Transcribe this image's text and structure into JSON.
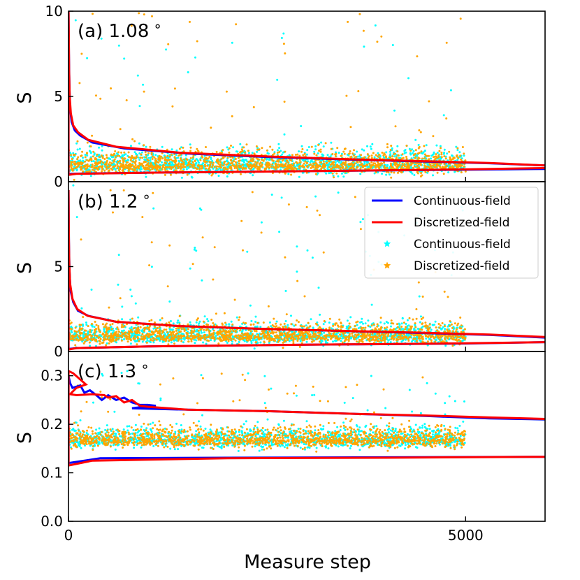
{
  "chart_data": {
    "type": "scatter",
    "xlabel": "Measure step",
    "x_ticks": [
      0,
      5000
    ],
    "xlim": [
      0,
      6000
    ],
    "legend": {
      "placement": "top-right of panel b",
      "entries": [
        {
          "label": "Continuous-field",
          "kind": "line",
          "color": "#0000ff"
        },
        {
          "label": "Discretized-field",
          "kind": "line",
          "color": "#ff0000"
        },
        {
          "label": "Continuous-field",
          "kind": "star",
          "color": "#00ffff"
        },
        {
          "label": "Discretized-field",
          "kind": "star",
          "color": "#ffa500"
        }
      ]
    },
    "panels": [
      {
        "label": "(a) 1.08",
        "degree_mark": "∘",
        "ylabel": "S",
        "ylim": [
          0,
          10
        ],
        "yticks": [
          0,
          5,
          10
        ],
        "scatter": {
          "steps": 5000,
          "base_mean": 1.0,
          "spread": 0.45,
          "outlier_max": 10
        },
        "series": [
          {
            "name": "Continuous-field",
            "color": "#0000ff",
            "upper": [
              [
                0,
                10
              ],
              [
                5,
                7.5
              ],
              [
                12,
                5.5
              ],
              [
                20,
                4.3
              ],
              [
                40,
                3.5
              ],
              [
                80,
                3.0
              ],
              [
                150,
                2.7
              ],
              [
                300,
                2.3
              ],
              [
                700,
                1.95
              ],
              [
                1500,
                1.65
              ],
              [
                2500,
                1.45
              ],
              [
                3500,
                1.3
              ],
              [
                4500,
                1.18
              ],
              [
                5300,
                1.08
              ],
              [
                6000,
                0.95
              ]
            ],
            "lower": [
              [
                0,
                0.45
              ],
              [
                100,
                0.47
              ],
              [
                1000,
                0.53
              ],
              [
                3000,
                0.62
              ],
              [
                5000,
                0.7
              ],
              [
                6000,
                0.75
              ]
            ]
          },
          {
            "name": "Discretized-field",
            "color": "#ff0000",
            "upper": [
              [
                0,
                10
              ],
              [
                4,
                8.5
              ],
              [
                8,
                6.5
              ],
              [
                15,
                5.0
              ],
              [
                30,
                4.0
              ],
              [
                60,
                3.3
              ],
              [
                120,
                2.9
              ],
              [
                250,
                2.45
              ],
              [
                600,
                2.05
              ],
              [
                1400,
                1.7
              ],
              [
                2500,
                1.48
              ],
              [
                3500,
                1.32
              ],
              [
                4500,
                1.2
              ],
              [
                5300,
                1.1
              ],
              [
                6000,
                0.95
              ]
            ],
            "lower": [
              [
                0,
                0.4
              ],
              [
                100,
                0.46
              ],
              [
                1000,
                0.53
              ],
              [
                3000,
                0.62
              ],
              [
                5000,
                0.72
              ],
              [
                6000,
                0.8
              ]
            ]
          }
        ]
      },
      {
        "label": "(b) 1.2",
        "degree_mark": "∘",
        "ylabel": "S",
        "ylim": [
          0,
          10
        ],
        "yticks": [
          0,
          5
        ],
        "scatter": {
          "steps": 5000,
          "base_mean": 0.95,
          "spread": 0.4,
          "outlier_max": 9.8
        },
        "series": [
          {
            "name": "Continuous-field",
            "color": "#0000ff",
            "upper": [
              [
                0,
                9.5
              ],
              [
                5,
                6.5
              ],
              [
                12,
                4.8
              ],
              [
                25,
                3.6
              ],
              [
                60,
                2.9
              ],
              [
                120,
                2.4
              ],
              [
                250,
                2.1
              ],
              [
                600,
                1.75
              ],
              [
                1400,
                1.5
              ],
              [
                2500,
                1.32
              ],
              [
                3500,
                1.2
              ],
              [
                4500,
                1.08
              ],
              [
                5300,
                0.98
              ],
              [
                6000,
                0.82
              ]
            ],
            "lower": [
              [
                0,
                0.15
              ],
              [
                100,
                0.2
              ],
              [
                1000,
                0.3
              ],
              [
                3000,
                0.4
              ],
              [
                5000,
                0.47
              ],
              [
                6000,
                0.55
              ]
            ]
          },
          {
            "name": "Discretized-field",
            "color": "#ff0000",
            "upper": [
              [
                0,
                9.5
              ],
              [
                4,
                7.0
              ],
              [
                10,
                5.2
              ],
              [
                20,
                4.0
              ],
              [
                50,
                3.1
              ],
              [
                110,
                2.5
              ],
              [
                240,
                2.1
              ],
              [
                600,
                1.75
              ],
              [
                1400,
                1.5
              ],
              [
                2500,
                1.33
              ],
              [
                3500,
                1.21
              ],
              [
                4500,
                1.1
              ],
              [
                5300,
                1.0
              ],
              [
                6000,
                0.85
              ]
            ],
            "lower": [
              [
                0,
                0.12
              ],
              [
                100,
                0.2
              ],
              [
                1000,
                0.3
              ],
              [
                3000,
                0.4
              ],
              [
                5000,
                0.48
              ],
              [
                6000,
                0.55
              ]
            ]
          }
        ]
      },
      {
        "label": "(c) 1.3",
        "degree_mark": "∘",
        "ylabel": "S",
        "ylim": [
          0.0,
          0.35
        ],
        "yticks": [
          0.0,
          0.1,
          0.2,
          0.3
        ],
        "ytick_labels": [
          "0.0",
          "0.1",
          "0.2",
          "0.3"
        ],
        "scatter": {
          "steps": 5000,
          "base_mean": 0.168,
          "spread": 0.013,
          "outlier_max": 0.31
        },
        "series": [
          {
            "name": "Continuous-field",
            "color": "#0000ff",
            "upper": [
              [
                0,
                0.3
              ],
              [
                20,
                0.285
              ],
              [
                50,
                0.275
              ],
              [
                150,
                0.28
              ],
              [
                200,
                0.265
              ],
              [
                270,
                0.27
              ],
              [
                350,
                0.26
              ],
              [
                420,
                0.25
              ],
              [
                500,
                0.26
              ],
              [
                600,
                0.25
              ],
              [
                700,
                0.255
              ],
              [
                800,
                0.245
              ],
              [
                900,
                0.24
              ],
              [
                1000,
                0.24
              ],
              [
                1100,
                0.238
              ],
              [
                1000,
                0.236
              ],
              [
                900,
                0.235
              ],
              [
                800,
                0.233
              ],
              [
                1500,
                0.23
              ],
              [
                2500,
                0.227
              ],
              [
                3500,
                0.222
              ],
              [
                4500,
                0.217
              ],
              [
                5300,
                0.212
              ],
              [
                6000,
                0.21
              ]
            ],
            "lower": [
              [
                0,
                0.12
              ],
              [
                400,
                0.13
              ],
              [
                2000,
                0.131
              ],
              [
                4000,
                0.132
              ],
              [
                6000,
                0.133
              ]
            ]
          },
          {
            "name": "Discretized-field",
            "color": "#ff0000",
            "upper": [
              [
                0,
                0.31
              ],
              [
                60,
                0.305
              ],
              [
                130,
                0.295
              ],
              [
                220,
                0.282
              ],
              [
                100,
                0.275
              ],
              [
                20,
                0.262
              ],
              [
                100,
                0.26
              ],
              [
                300,
                0.262
              ],
              [
                450,
                0.26
              ],
              [
                500,
                0.255
              ],
              [
                600,
                0.258
              ],
              [
                700,
                0.245
              ],
              [
                800,
                0.25
              ],
              [
                900,
                0.238
              ],
              [
                1000,
                0.236
              ],
              [
                1500,
                0.23
              ],
              [
                2500,
                0.227
              ],
              [
                3500,
                0.222
              ],
              [
                4500,
                0.218
              ],
              [
                5300,
                0.214
              ],
              [
                6000,
                0.211
              ]
            ],
            "lower": [
              [
                0,
                0.115
              ],
              [
                300,
                0.125
              ],
              [
                2000,
                0.13
              ],
              [
                4000,
                0.131
              ],
              [
                6000,
                0.133
              ]
            ]
          }
        ]
      }
    ]
  }
}
